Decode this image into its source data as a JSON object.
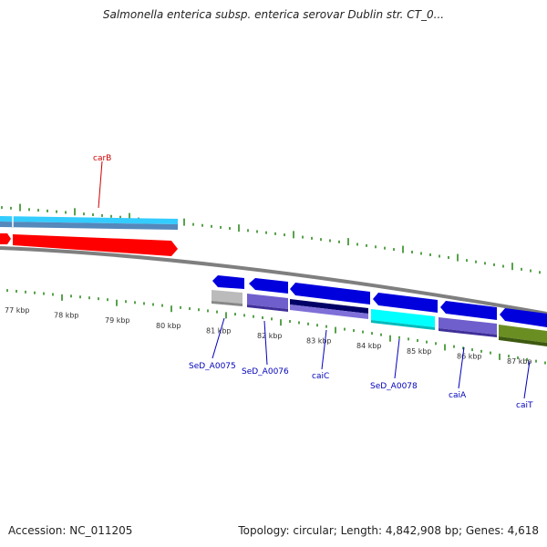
{
  "title": "Salmonella enterica subsp. enterica serovar Dublin str. CT_0...",
  "accession_text": "Accession: NC_011205",
  "topology_text": "Topology: circular; Length: 4,842,908 bp; Genes: 4,618",
  "colors": {
    "backbone": "#7f7f7f",
    "tick": "#2e8b1f",
    "label_line": "#cc0000",
    "gene_label": "#0000bb",
    "ruler_text": "#333333",
    "red": "#ff0000",
    "cyan_stripe": "#33ccff",
    "steel_stripe": "#5588bb",
    "blue": "#0000dd",
    "light_gray": "#bbbbbb",
    "violet": "#6f5fcc",
    "navy": "#000066",
    "cyan": "#00ffff",
    "olive": "#6b8e23"
  },
  "ruler_labels": [
    "77 kbp",
    "78 kbp",
    "79 kbp",
    "80 kbp",
    "81 kbp",
    "82 kbp",
    "83 kbp",
    "84 kbp",
    "85 kbp",
    "86 kbp",
    "87 kbp"
  ],
  "gene_labels": {
    "carB": "carB",
    "SeD_A0075": "SeD_A0075",
    "SeD_A0076": "SeD_A0076",
    "caiC": "caiC",
    "SeD_A0078": "SeD_A0078",
    "caiA": "caiA",
    "caiT": "caiT"
  }
}
